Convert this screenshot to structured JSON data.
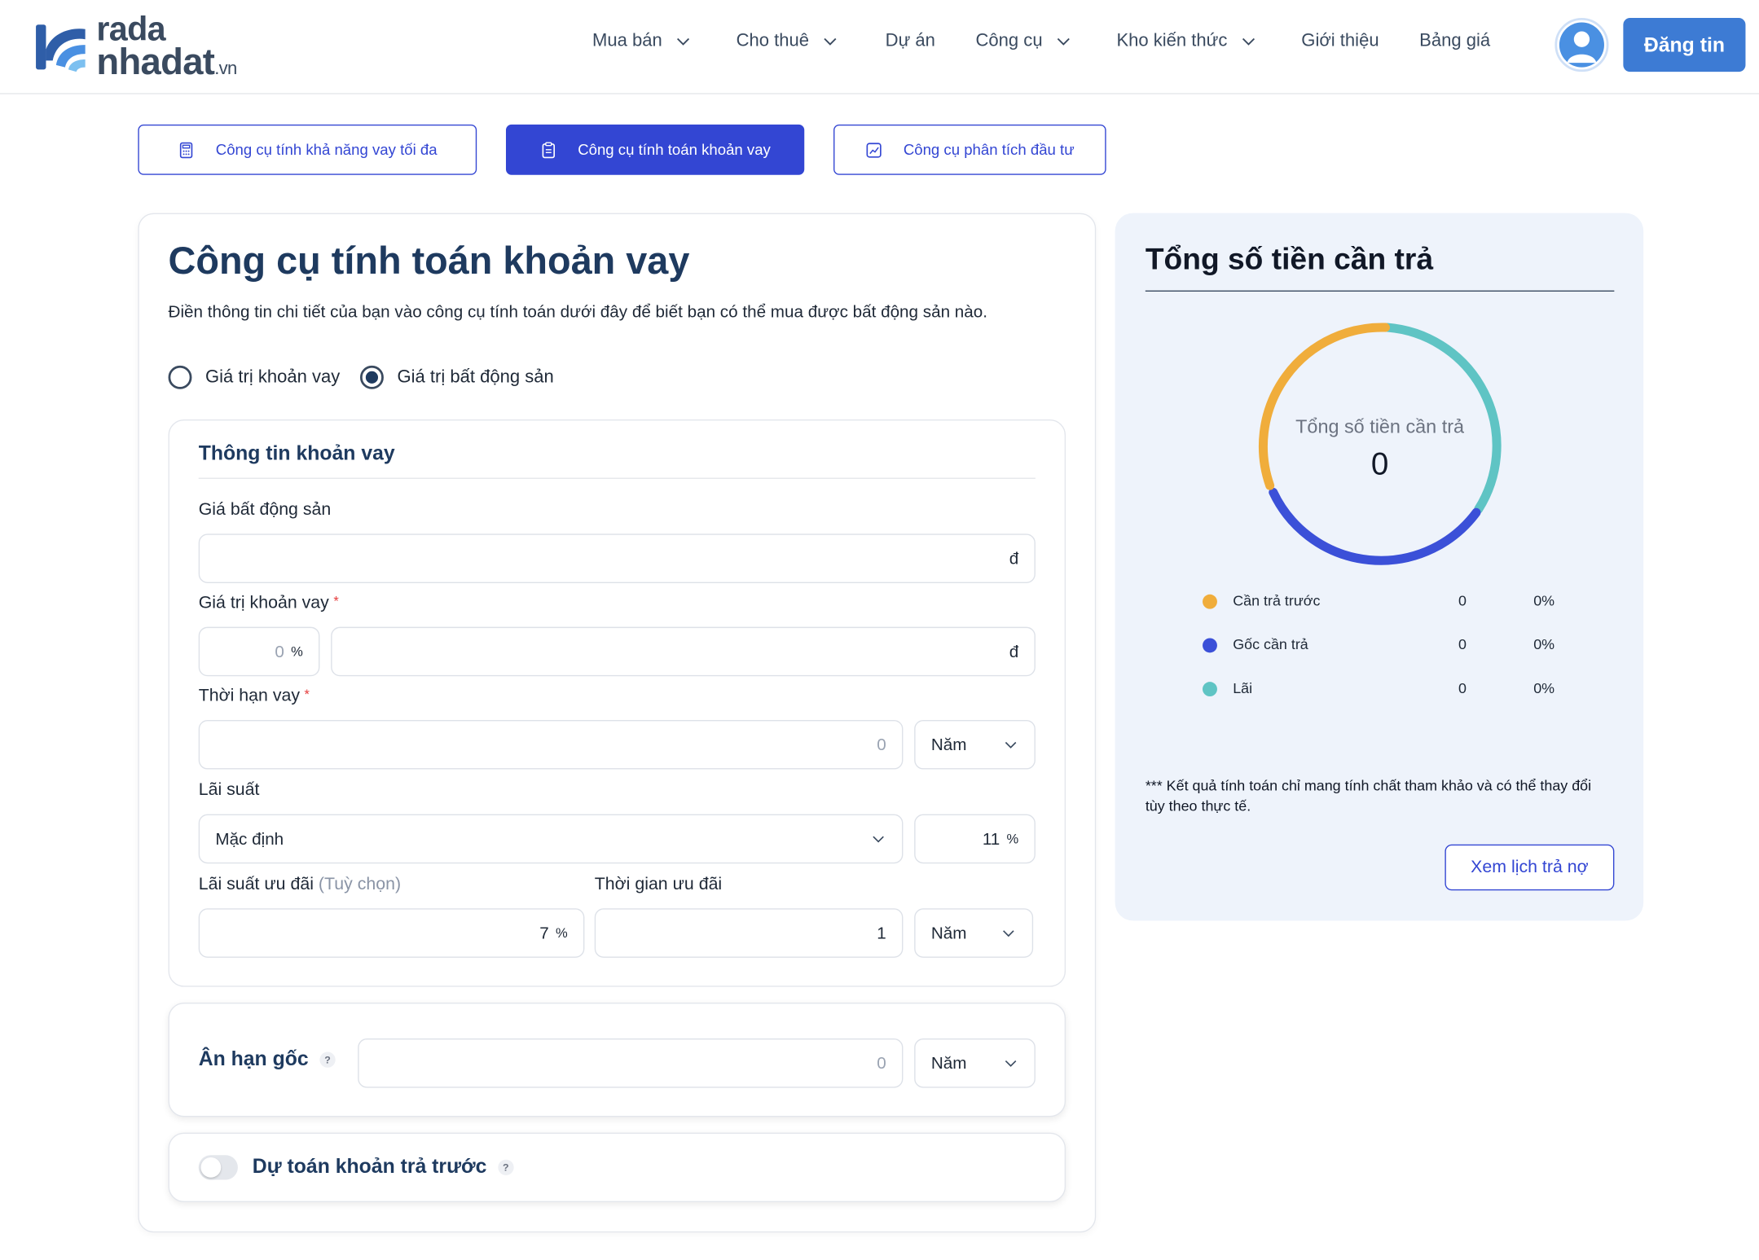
{
  "header": {
    "logo": {
      "top": "rada",
      "bottom": "nhadat",
      "suffix": ".vn"
    },
    "nav": [
      {
        "label": "Mua bán",
        "has_dropdown": true
      },
      {
        "label": "Cho thuê",
        "has_dropdown": true
      },
      {
        "label": "Dự án",
        "has_dropdown": false
      },
      {
        "label": "Công cụ",
        "has_dropdown": true
      },
      {
        "label": "Kho kiến thức",
        "has_dropdown": true
      },
      {
        "label": "Giới thiệu",
        "has_dropdown": false
      },
      {
        "label": "Bảng giá",
        "has_dropdown": false
      }
    ],
    "post_button": "Đăng tin"
  },
  "tool_tabs": [
    {
      "label": "Công cụ tính khả năng vay tối đa",
      "active": false,
      "icon": "calculator-icon"
    },
    {
      "label": "Công cụ tính toán khoản vay",
      "active": true,
      "icon": "clipboard-icon"
    },
    {
      "label": "Công cụ phân tích đầu tư",
      "active": false,
      "icon": "chart-icon"
    }
  ],
  "form": {
    "title": "Công cụ tính toán khoản vay",
    "description": "Điền thông tin chi tiết của bạn vào công cụ tính toán dưới đây để biết bạn có thể mua được bất động sản nào.",
    "mode_options": [
      {
        "label": "Giá trị khoản vay",
        "selected": false
      },
      {
        "label": "Giá trị bất động sản",
        "selected": true
      }
    ],
    "loan_info": {
      "title": "Thông tin khoản vay",
      "property_price": {
        "label": "Giá bất động sản",
        "value": "",
        "unit": "đ"
      },
      "loan_value": {
        "label": "Giá trị khoản vay",
        "required": "*",
        "percent_placeholder": "0",
        "percent_unit": "%",
        "value": "",
        "unit": "đ"
      },
      "loan_term": {
        "label": "Thời hạn vay",
        "required": "*",
        "placeholder": "0",
        "period": "Năm"
      },
      "interest": {
        "label": "Lãi suất",
        "type": "Mặc định",
        "rate": "11",
        "rate_unit": "%"
      },
      "promo_rate": {
        "label": "Lãi suất ưu đãi",
        "optional": "(Tuỳ chọn)",
        "value": "7",
        "unit": "%"
      },
      "promo_time": {
        "label": "Thời gian ưu đãi",
        "value": "1",
        "period": "Năm"
      }
    },
    "grace": {
      "title": "Ân hạn gốc",
      "help": "?",
      "placeholder": "0",
      "period": "Năm"
    },
    "prepay": {
      "title": "Dự toán khoản trả trước",
      "help": "?",
      "enabled": false
    }
  },
  "summary": {
    "title": "Tổng số tiền cần trả",
    "donut_label": "Tổng số tiền cần trả",
    "donut_value": "0",
    "colors": {
      "prepay": "#f0ad3b",
      "principal": "#3b50d8",
      "interest": "#5fc4c4"
    },
    "legend": [
      {
        "name": "Cần trả trước",
        "value": "0",
        "percent": "0%",
        "color": "#f0ad3b"
      },
      {
        "name": "Gốc cần trả",
        "value": "0",
        "percent": "0%",
        "color": "#3b50d8"
      },
      {
        "name": "Lãi",
        "value": "0",
        "percent": "0%",
        "color": "#5fc4c4"
      }
    ],
    "note": "*** Kết quả tính toán chỉ mang tính chất tham khảo và có thể thay đổi tùy theo thực tế.",
    "schedule_button": "Xem lịch trả nợ"
  }
}
